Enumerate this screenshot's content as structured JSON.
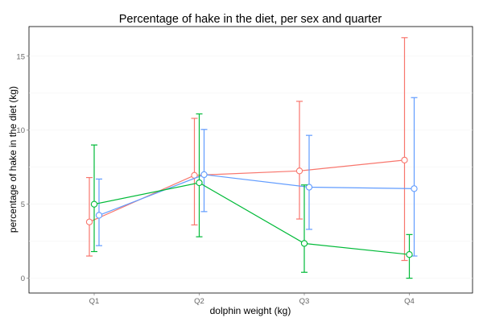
{
  "chart_data": {
    "type": "line",
    "title": "Percentage of hake in the diet, per sex and quarter",
    "xlabel": "dolphin weight (kg)",
    "ylabel": "percentage of hake in the diet (kg)",
    "categories": [
      "Q1",
      "Q2",
      "Q3",
      "Q4"
    ],
    "ylim": [
      -1,
      17
    ],
    "yticks": [
      0,
      5,
      10,
      15
    ],
    "grid": true,
    "legend": "none",
    "series": [
      {
        "color": "#F8766D",
        "values": [
          3.8,
          6.95,
          7.25,
          7.98
        ],
        "error_low": [
          1.5,
          3.6,
          4.0,
          1.2
        ],
        "error_high": [
          6.8,
          10.8,
          11.95,
          16.25
        ]
      },
      {
        "color": "#619CFF",
        "values": [
          4.25,
          7.0,
          6.15,
          6.05
        ],
        "error_low": [
          2.2,
          4.5,
          3.3,
          1.5
        ],
        "error_high": [
          6.7,
          10.05,
          9.65,
          12.2
        ]
      },
      {
        "color": "#00BA38",
        "values": [
          5.0,
          6.45,
          2.35,
          1.6
        ],
        "error_low": [
          1.8,
          2.8,
          0.4,
          0.0
        ],
        "error_high": [
          9.0,
          11.1,
          6.3,
          2.95
        ]
      }
    ]
  }
}
